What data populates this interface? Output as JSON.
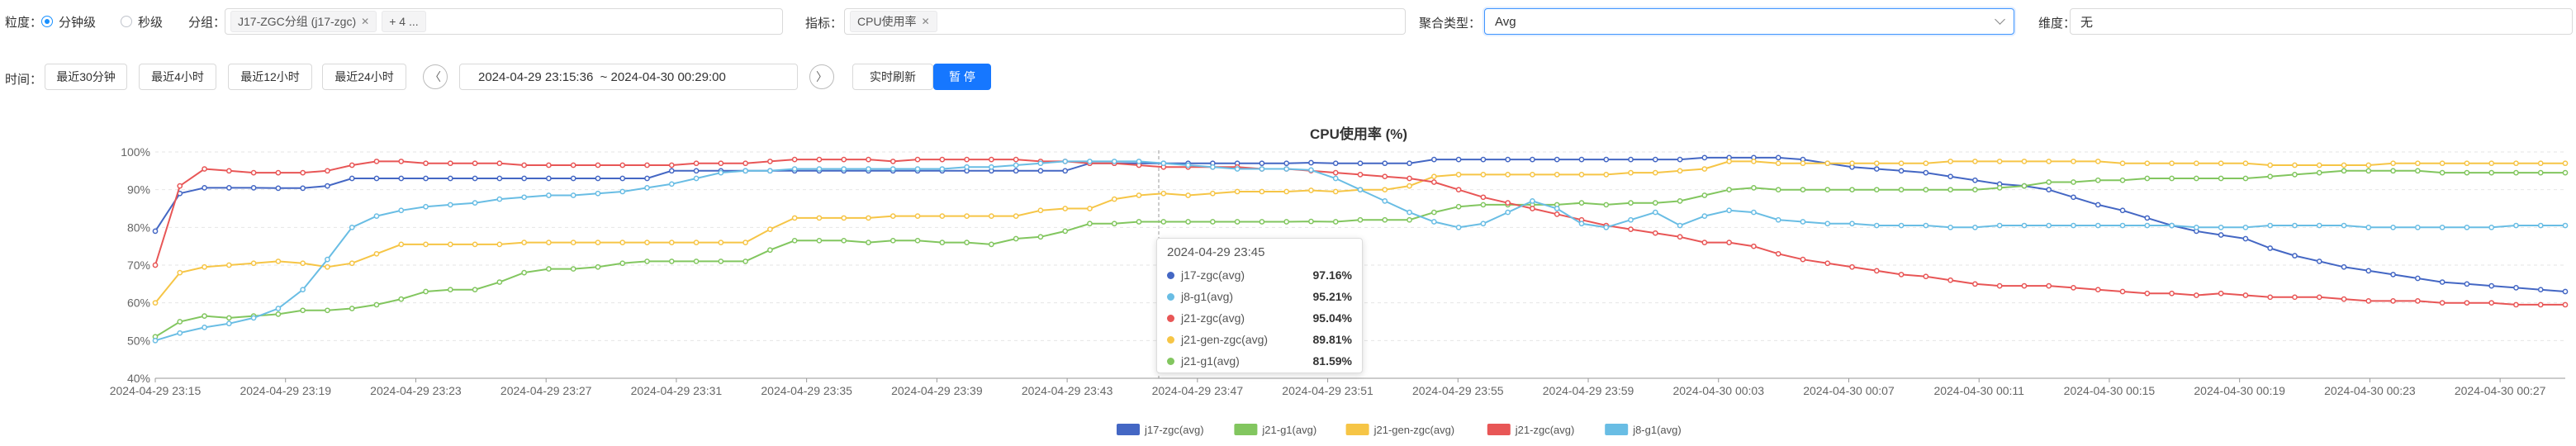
{
  "filters": {
    "granularity_label": "粒度：",
    "granularity_options": [
      "分钟级",
      "秒级"
    ],
    "group_label": "分组：",
    "group_tag": "J17-ZGC分组 (j17-zgc)",
    "group_more": "+ 4 ...",
    "metric_label": "指标：",
    "metric_tag": "CPU使用率",
    "agg_label": "聚合类型：",
    "agg_value": "Avg",
    "dim_label": "维度：",
    "dim_value": "无"
  },
  "time": {
    "label": "时间：",
    "presets": [
      "最近30分钟",
      "最近4小时",
      "最近12小时",
      "最近24小时"
    ],
    "range": "2024-04-29 23:15:36  ~ 2024-04-30 00:29:00",
    "refresh": "实时刷新",
    "pause": "暂 停"
  },
  "colors": {
    "j17": "#4467c4",
    "j21g1": "#82c65f",
    "j21gen": "#f6c546",
    "j21zgc": "#e85656",
    "j8": "#69bde4",
    "accent": "#1677ff"
  },
  "tooltip": {
    "title": "2024-04-29 23:45",
    "rows": [
      {
        "name": "j17-zgc(avg)",
        "value": "97.16%",
        "color": "#4467c4"
      },
      {
        "name": "j8-g1(avg)",
        "value": "95.21%",
        "color": "#69bde4"
      },
      {
        "name": "j21-zgc(avg)",
        "value": "95.04%",
        "color": "#e85656"
      },
      {
        "name": "j21-gen-zgc(avg)",
        "value": "89.81%",
        "color": "#f6c546"
      },
      {
        "name": "j21-g1(avg)",
        "value": "81.59%",
        "color": "#82c65f"
      }
    ]
  },
  "chart_data": {
    "type": "line",
    "title": "CPU使用率 (%)",
    "ylim": [
      40,
      100
    ],
    "yticks": [
      "40%",
      "50%",
      "60%",
      "70%",
      "80%",
      "90%",
      "100%"
    ],
    "x_start": "2024-04-29 23:15",
    "x_end": "2024-04-30 00:29",
    "x_tick_labels": [
      "2024-04-29 23:15",
      "2024-04-29 23:19",
      "2024-04-29 23:23",
      "2024-04-29 23:27",
      "2024-04-29 23:31",
      "2024-04-29 23:35",
      "2024-04-29 23:39",
      "2024-04-29 23:43",
      "2024-04-29 23:47",
      "2024-04-29 23:51",
      "2024-04-29 23:55",
      "2024-04-29 23:59",
      "2024-04-30 00:03",
      "2024-04-30 00:07",
      "2024-04-30 00:11",
      "2024-04-30 00:15",
      "2024-04-30 00:19",
      "2024-04-30 00:23",
      "2024-04-30 00:27"
    ],
    "grid": true,
    "legend_position": "bottom",
    "series": [
      {
        "name": "j17-zgc(avg)",
        "color": "#4467c4",
        "values": [
          79,
          89,
          90.5,
          90.5,
          90.5,
          90.4,
          90.4,
          91,
          93,
          93,
          93,
          93,
          93,
          93,
          93,
          93,
          93,
          93,
          93,
          93,
          93,
          95,
          95,
          95,
          95,
          95,
          95,
          95,
          95,
          95,
          95,
          95,
          95,
          95,
          95,
          95,
          95,
          95,
          97,
          97,
          97,
          97,
          97,
          97,
          97,
          97,
          97,
          97.16,
          97,
          97,
          97,
          97,
          98,
          98,
          98,
          98,
          98,
          98,
          98,
          98,
          98,
          98,
          98,
          98.5,
          98.5,
          98.5,
          98.5,
          98,
          97,
          96,
          95.5,
          95,
          94.5,
          93.5,
          92.5,
          91.5,
          91,
          90,
          88,
          86,
          84.5,
          82.5,
          80.5,
          79,
          78,
          77,
          74.5,
          72.5,
          71,
          69.5,
          68.5,
          67.5,
          66.5,
          65.5,
          65,
          64.5,
          64,
          63.5,
          63
        ]
      },
      {
        "name": "j21-g1(avg)",
        "color": "#82c65f",
        "values": [
          51,
          55,
          56.5,
          56,
          56.5,
          57,
          58,
          58,
          58.5,
          59.5,
          61,
          63,
          63.5,
          63.5,
          65.5,
          68,
          69,
          69,
          69.5,
          70.5,
          71,
          71,
          71,
          71,
          71,
          74,
          76.5,
          76.5,
          76.5,
          76,
          76.5,
          76.5,
          76,
          76,
          75.5,
          77,
          77.5,
          79,
          81,
          81,
          81.5,
          81.5,
          81.5,
          81.5,
          81.5,
          81.5,
          81.5,
          81.59,
          81.5,
          82,
          82,
          82,
          84,
          85.5,
          86,
          86,
          86,
          86,
          86.5,
          86,
          86.5,
          86.5,
          87,
          88.5,
          90,
          90.5,
          90,
          90,
          90,
          90,
          90,
          90,
          90,
          90,
          90,
          90.5,
          91,
          92,
          92,
          92.5,
          92.5,
          93,
          93,
          93,
          93,
          93,
          93.5,
          94,
          94.5,
          95,
          95,
          95,
          95,
          94.5,
          94.5,
          94.5,
          94.5,
          94.5,
          94.5
        ]
      },
      {
        "name": "j21-gen-zgc(avg)",
        "color": "#f6c546",
        "values": [
          60,
          68,
          69.5,
          70,
          70.5,
          71,
          70.5,
          69.5,
          70.5,
          73,
          75.5,
          75.5,
          75.5,
          75.5,
          75.5,
          76,
          76,
          76,
          76,
          76,
          76,
          76,
          76,
          76,
          76,
          79.5,
          82.5,
          82.5,
          82.5,
          82.5,
          83,
          83,
          83,
          83,
          83,
          83,
          84.5,
          85,
          85,
          87.5,
          88.5,
          89,
          88.5,
          89,
          89.5,
          89.5,
          89.5,
          89.81,
          89.5,
          90,
          90,
          91,
          93.5,
          94,
          94,
          94,
          94,
          94,
          94,
          94,
          94.5,
          94.5,
          95,
          95.5,
          97.5,
          97.5,
          97,
          97,
          97,
          97,
          97,
          97,
          97,
          97.5,
          97.5,
          97.5,
          97.5,
          97.5,
          97.5,
          97.5,
          97,
          97,
          97,
          97,
          97,
          97,
          96.5,
          96.5,
          96.5,
          96.5,
          96.5,
          97,
          97,
          97,
          97,
          97,
          97,
          97,
          97
        ]
      },
      {
        "name": "j21-zgc(avg)",
        "color": "#e85656",
        "values": [
          70,
          91,
          95.5,
          95,
          94.5,
          94.5,
          94.5,
          95,
          96.5,
          97.5,
          97.5,
          97,
          97,
          97,
          97,
          96.5,
          96.5,
          96.5,
          96.5,
          96.5,
          96.5,
          96.5,
          97,
          97,
          97,
          97.5,
          98,
          98,
          98,
          98,
          97.5,
          98,
          98,
          98,
          98,
          98,
          97.5,
          97.5,
          97,
          97,
          96.5,
          96,
          96,
          96,
          96,
          95.5,
          95.5,
          95.04,
          94.5,
          94,
          93.5,
          93,
          92,
          90,
          88,
          86.5,
          85,
          83.5,
          82,
          80.5,
          79.5,
          78.5,
          77.5,
          76,
          76,
          75,
          73,
          71.5,
          70.5,
          69.5,
          68.5,
          67.5,
          67,
          66,
          65,
          64.5,
          64.5,
          64.5,
          64,
          63.5,
          63,
          62.5,
          62.5,
          62,
          62.5,
          62,
          61.5,
          61.5,
          61.5,
          61,
          60.5,
          60.5,
          60.5,
          60,
          60,
          60,
          59.5,
          59.5,
          59.5
        ]
      },
      {
        "name": "j8-g1(avg)",
        "color": "#69bde4",
        "values": [
          50,
          52,
          53.5,
          54.5,
          56,
          58.5,
          63.5,
          71.5,
          80,
          83,
          84.5,
          85.5,
          86,
          86.5,
          87.5,
          88,
          88.5,
          88.5,
          89,
          89.5,
          90.5,
          91.5,
          93,
          94.5,
          95,
          95,
          95.5,
          95.5,
          95.5,
          95.5,
          95.5,
          95.5,
          95.5,
          96,
          96,
          96.5,
          97,
          97.5,
          97.5,
          97.5,
          97.5,
          97,
          96.5,
          96,
          95.5,
          95.5,
          95.5,
          95.21,
          93,
          90,
          87,
          84,
          81.5,
          80,
          81,
          84,
          87,
          85,
          81,
          80,
          82,
          84,
          80.5,
          83,
          84.5,
          84,
          82,
          81.5,
          81,
          81,
          80.5,
          80.5,
          80.5,
          80,
          80,
          80.5,
          80.5,
          80.5,
          80.5,
          80.5,
          80.5,
          80.5,
          80.5,
          80,
          80,
          80,
          80.5,
          80.5,
          80.5,
          80.5,
          80,
          80,
          80,
          80,
          80,
          80,
          80.5,
          80.5,
          80.5
        ]
      }
    ]
  }
}
